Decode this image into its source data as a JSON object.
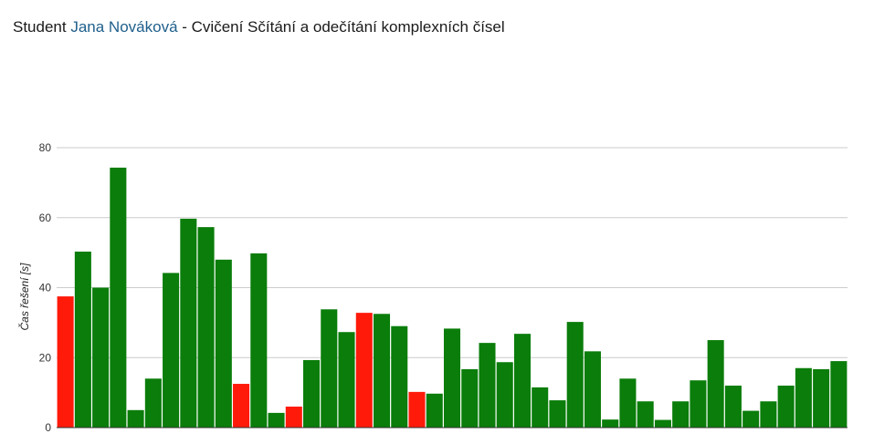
{
  "header": {
    "prefix": "Student",
    "student_name": "Jana Nováková",
    "separator": " - ",
    "exercise": "Cvičení Sčítání a odečítání komplexních čísel"
  },
  "chart_data": {
    "type": "bar",
    "ylabel": "Čas řešení [s]",
    "ylim": [
      0,
      80
    ],
    "yticks": [
      0,
      20,
      40,
      60,
      80
    ],
    "grid": true,
    "legend": "none",
    "colors": {
      "correct": "#0a7d0a",
      "incorrect": "#ff1a0a",
      "grid": "#cccccc"
    },
    "values": [
      37.5,
      50.3,
      40.0,
      74.3,
      5.0,
      14.0,
      44.2,
      59.7,
      57.3,
      48.0,
      12.5,
      49.8,
      4.2,
      6.0,
      19.3,
      33.8,
      27.3,
      32.8,
      32.5,
      29.0,
      10.2,
      9.7,
      28.3,
      16.7,
      24.2,
      18.7,
      26.8,
      11.5,
      7.8,
      30.2,
      21.8,
      2.3,
      14.0,
      7.5,
      2.2,
      7.5,
      13.5,
      25.0,
      12.0,
      4.8,
      7.5,
      12.0,
      17.0,
      16.7,
      19.0
    ],
    "status": [
      "incorrect",
      "correct",
      "correct",
      "correct",
      "correct",
      "correct",
      "correct",
      "correct",
      "correct",
      "correct",
      "incorrect",
      "correct",
      "correct",
      "incorrect",
      "correct",
      "correct",
      "correct",
      "incorrect",
      "correct",
      "correct",
      "incorrect",
      "correct",
      "correct",
      "correct",
      "correct",
      "correct",
      "correct",
      "correct",
      "correct",
      "correct",
      "correct",
      "correct",
      "correct",
      "correct",
      "correct",
      "correct",
      "correct",
      "correct",
      "correct",
      "correct",
      "correct",
      "correct",
      "correct",
      "correct",
      "correct"
    ]
  }
}
